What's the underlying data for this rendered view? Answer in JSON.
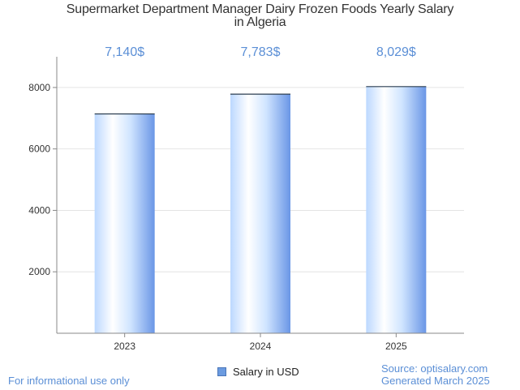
{
  "chart_data": {
    "type": "bar",
    "title_lines": [
      "Supermarket Department Manager Dairy Frozen Foods Yearly Salary",
      "in Algeria"
    ],
    "categories": [
      "2023",
      "2024",
      "2025"
    ],
    "series": [
      {
        "name": "Salary in USD",
        "values": [
          7140,
          7783,
          8029
        ],
        "value_labels": [
          "7,140$",
          "7,783$",
          "8,029$"
        ]
      }
    ],
    "yticks": [
      "2000",
      "4000",
      "6000",
      "8000"
    ],
    "ytick_values": [
      2000,
      4000,
      6000,
      8000
    ],
    "ylim": [
      0,
      9000
    ],
    "grid": true,
    "legend_position": "bottom-center",
    "colors": {
      "bar_light": "#ffffff",
      "bar_mid": "#cfe4ff",
      "bar_dark": "#6a96e6",
      "value_label": "#5b8fd6",
      "grid": "#e4e4e4",
      "axis": "#888888"
    }
  },
  "footer": {
    "left_note": "For informational use only",
    "source": "Source: optisalary.com",
    "generated": "Generated March 2025"
  }
}
